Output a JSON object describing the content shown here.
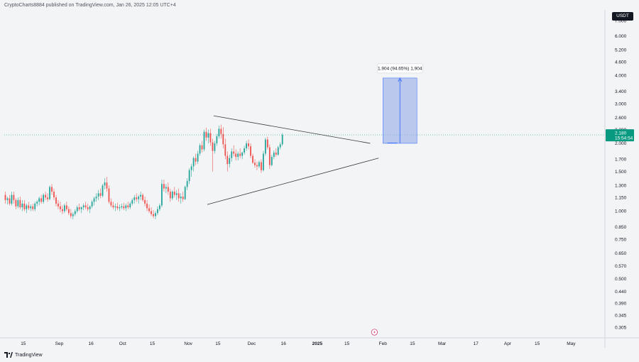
{
  "header": {
    "publisher_line": "CryptoCharts8884 published on TradingView.com, Jan 26, 2025 12:05 UTC+4"
  },
  "badge": {
    "currency": "USDT"
  },
  "footer": {
    "brand": "TradingView"
  },
  "colors": {
    "background": "#f3f4f6",
    "up_candle": "#26a69a",
    "down_candle": "#ef5350",
    "trendline": "#3a3a3a",
    "measure_fill": "#9bb0e8",
    "measure_line": "#2962ff",
    "price_tag": "#089981",
    "last_price_line": "#26a69a"
  },
  "chart_data": {
    "type": "candlestick",
    "scale": "log",
    "ylim": [
      0.29,
      7.6
    ],
    "x_range": [
      "2024-08-06",
      "2025-05-17"
    ],
    "price_ticks": [
      "7.000",
      "6.000",
      "5.200",
      "4.600",
      "4.000",
      "3.400",
      "3.000",
      "2.600",
      "2.300",
      "2.000",
      "1.700",
      "1.500",
      "1.300",
      "1.150",
      "1.000",
      "0.850",
      "0.750",
      "0.650",
      "0.570",
      "0.500",
      "0.440",
      "0.390",
      "0.345",
      "0.305"
    ],
    "time_ticks": [
      {
        "label": "15",
        "date": "2024-08-15"
      },
      {
        "label": "Sep",
        "date": "2024-09-01"
      },
      {
        "label": "16",
        "date": "2024-09-16"
      },
      {
        "label": "Oct",
        "date": "2024-10-01"
      },
      {
        "label": "15",
        "date": "2024-10-15"
      },
      {
        "label": "Nov",
        "date": "2024-11-01"
      },
      {
        "label": "15",
        "date": "2024-11-15"
      },
      {
        "label": "Dec",
        "date": "2024-12-01"
      },
      {
        "label": "16",
        "date": "2024-12-16"
      },
      {
        "label": "2025",
        "date": "2025-01-01"
      },
      {
        "label": "15",
        "date": "2025-01-15"
      },
      {
        "label": "Feb",
        "date": "2025-02-01"
      },
      {
        "label": "15",
        "date": "2025-02-15"
      },
      {
        "label": "Mar",
        "date": "2025-03-01"
      },
      {
        "label": "17",
        "date": "2025-03-17"
      },
      {
        "label": "Apr",
        "date": "2025-04-01"
      },
      {
        "label": "15",
        "date": "2025-04-15"
      },
      {
        "label": "May",
        "date": "2025-05-01"
      }
    ],
    "last_price": "2.180",
    "countdown": "15:54:54",
    "measure_label": "1.904 (94.65%) 1,904",
    "trendlines": [
      {
        "name": "upper",
        "from": {
          "date": "2024-11-13",
          "price": 2.65
        },
        "to": {
          "date": "2025-01-26",
          "price": 2.0
        }
      },
      {
        "name": "lower",
        "from": {
          "date": "2024-11-10",
          "price": 1.07
        },
        "to": {
          "date": "2025-01-30",
          "price": 1.72
        }
      }
    ],
    "measure_box": {
      "from_date": "2025-01-26",
      "to_date": "2025-02-03",
      "low": 2.0,
      "high": 3.9
    },
    "candles_ohlc_by_day_from_2024-08-06": [
      [
        1.18,
        1.22,
        1.08,
        1.12
      ],
      [
        1.12,
        1.16,
        1.07,
        1.14
      ],
      [
        1.14,
        1.18,
        1.06,
        1.08
      ],
      [
        1.08,
        1.22,
        1.06,
        1.18
      ],
      [
        1.18,
        1.22,
        1.08,
        1.12
      ],
      [
        1.12,
        1.14,
        1.02,
        1.05
      ],
      [
        1.05,
        1.15,
        1.03,
        1.12
      ],
      [
        1.12,
        1.16,
        1.02,
        1.04
      ],
      [
        1.04,
        1.12,
        1.0,
        1.08
      ],
      [
        1.08,
        1.12,
        1.0,
        1.02
      ],
      [
        1.02,
        1.08,
        0.98,
        1.06
      ],
      [
        1.06,
        1.1,
        1.01,
        1.03
      ],
      [
        1.03,
        1.07,
        1.0,
        1.05
      ],
      [
        1.05,
        1.08,
        1.0,
        1.02
      ],
      [
        1.02,
        1.1,
        1.0,
        1.08
      ],
      [
        1.08,
        1.12,
        1.05,
        1.1
      ],
      [
        1.1,
        1.16,
        1.06,
        1.14
      ],
      [
        1.14,
        1.18,
        1.08,
        1.1
      ],
      [
        1.1,
        1.2,
        1.08,
        1.18
      ],
      [
        1.18,
        1.22,
        1.12,
        1.15
      ],
      [
        1.15,
        1.2,
        1.1,
        1.13
      ],
      [
        1.13,
        1.3,
        1.12,
        1.28
      ],
      [
        1.28,
        1.32,
        1.18,
        1.22
      ],
      [
        1.22,
        1.26,
        1.12,
        1.15
      ],
      [
        1.15,
        1.18,
        1.05,
        1.08
      ],
      [
        1.08,
        1.12,
        1.02,
        1.05
      ],
      [
        1.05,
        1.1,
        0.99,
        1.02
      ],
      [
        1.02,
        1.06,
        0.97,
        1.0
      ],
      [
        1.0,
        1.08,
        0.98,
        1.06
      ],
      [
        1.06,
        1.1,
        1.0,
        1.02
      ],
      [
        1.02,
        1.05,
        0.96,
        0.98
      ],
      [
        0.98,
        1.02,
        0.93,
        0.95
      ],
      [
        0.95,
        0.99,
        0.92,
        0.97
      ],
      [
        0.97,
        1.02,
        0.95,
        1.0
      ],
      [
        1.0,
        1.06,
        0.98,
        1.04
      ],
      [
        1.04,
        1.08,
        1.0,
        1.02
      ],
      [
        1.02,
        1.05,
        0.98,
        1.04
      ],
      [
        1.04,
        1.08,
        1.01,
        1.06
      ],
      [
        1.06,
        1.1,
        1.02,
        1.04
      ],
      [
        1.04,
        1.08,
        1.0,
        1.02
      ],
      [
        1.02,
        1.06,
        0.98,
        1.05
      ],
      [
        1.05,
        1.12,
        1.03,
        1.1
      ],
      [
        1.1,
        1.16,
        1.06,
        1.14
      ],
      [
        1.14,
        1.2,
        1.1,
        1.16
      ],
      [
        1.16,
        1.24,
        1.12,
        1.2
      ],
      [
        1.2,
        1.26,
        1.14,
        1.17
      ],
      [
        1.17,
        1.32,
        1.15,
        1.3
      ],
      [
        1.3,
        1.4,
        1.25,
        1.34
      ],
      [
        1.34,
        1.42,
        1.22,
        1.26
      ],
      [
        1.26,
        1.3,
        1.08,
        1.1
      ],
      [
        1.1,
        1.14,
        1.04,
        1.06
      ],
      [
        1.06,
        1.1,
        1.02,
        1.04
      ],
      [
        1.04,
        1.08,
        1.0,
        1.05
      ],
      [
        1.05,
        1.09,
        1.01,
        1.03
      ],
      [
        1.03,
        1.07,
        1.0,
        1.04
      ],
      [
        1.04,
        1.08,
        1.02,
        1.05
      ],
      [
        1.05,
        1.09,
        1.01,
        1.03
      ],
      [
        1.03,
        1.08,
        1.0,
        1.06
      ],
      [
        1.06,
        1.1,
        1.02,
        1.04
      ],
      [
        1.04,
        1.1,
        1.02,
        1.08
      ],
      [
        1.08,
        1.14,
        1.06,
        1.12
      ],
      [
        1.12,
        1.18,
        1.08,
        1.15
      ],
      [
        1.15,
        1.2,
        1.1,
        1.13
      ],
      [
        1.13,
        1.18,
        1.08,
        1.16
      ],
      [
        1.16,
        1.22,
        1.12,
        1.18
      ],
      [
        1.18,
        1.2,
        1.1,
        1.12
      ],
      [
        1.12,
        1.16,
        1.05,
        1.08
      ],
      [
        1.08,
        1.12,
        1.0,
        1.03
      ],
      [
        1.03,
        1.07,
        0.98,
        1.0
      ],
      [
        1.0,
        1.04,
        0.95,
        0.97
      ],
      [
        0.97,
        1.01,
        0.93,
        0.95
      ],
      [
        0.95,
        1.0,
        0.92,
        0.98
      ],
      [
        0.98,
        1.05,
        0.96,
        1.02
      ],
      [
        1.02,
        1.08,
        1.0,
        1.06
      ],
      [
        1.06,
        1.38,
        1.04,
        1.32
      ],
      [
        1.32,
        1.38,
        1.22,
        1.26
      ],
      [
        1.26,
        1.32,
        1.2,
        1.28
      ],
      [
        1.28,
        1.34,
        1.18,
        1.22
      ],
      [
        1.22,
        1.26,
        1.1,
        1.14
      ],
      [
        1.14,
        1.24,
        1.12,
        1.22
      ],
      [
        1.22,
        1.28,
        1.15,
        1.18
      ],
      [
        1.18,
        1.24,
        1.12,
        1.2
      ],
      [
        1.2,
        1.26,
        1.1,
        1.14
      ],
      [
        1.14,
        1.2,
        1.08,
        1.16
      ],
      [
        1.16,
        1.22,
        1.1,
        1.13
      ],
      [
        1.13,
        1.3,
        1.12,
        1.28
      ],
      [
        1.28,
        1.4,
        1.24,
        1.36
      ],
      [
        1.36,
        1.55,
        1.32,
        1.52
      ],
      [
        1.52,
        1.62,
        1.42,
        1.58
      ],
      [
        1.58,
        1.75,
        1.5,
        1.72
      ],
      [
        1.72,
        1.8,
        1.6,
        1.66
      ],
      [
        1.66,
        1.85,
        1.62,
        1.8
      ],
      [
        1.8,
        2.0,
        1.76,
        1.96
      ],
      [
        1.96,
        2.05,
        1.82,
        1.88
      ],
      [
        1.88,
        2.3,
        1.84,
        2.25
      ],
      [
        2.25,
        2.35,
        2.05,
        2.12
      ],
      [
        2.12,
        2.3,
        2.0,
        2.22
      ],
      [
        2.22,
        2.32,
        1.95,
        2.02
      ],
      [
        2.02,
        2.1,
        1.5,
        1.85
      ],
      [
        1.85,
        2.05,
        1.8,
        2.0
      ],
      [
        2.0,
        2.2,
        1.95,
        2.15
      ],
      [
        2.15,
        2.4,
        2.1,
        2.32
      ],
      [
        2.32,
        2.42,
        2.1,
        2.2
      ],
      [
        2.2,
        2.36,
        1.9,
        1.98
      ],
      [
        1.98,
        2.1,
        1.7,
        1.76
      ],
      [
        1.76,
        1.84,
        1.5,
        1.62
      ],
      [
        1.62,
        1.78,
        1.56,
        1.72
      ],
      [
        1.72,
        1.9,
        1.66,
        1.84
      ],
      [
        1.84,
        1.96,
        1.75,
        1.8
      ],
      [
        1.8,
        1.88,
        1.68,
        1.74
      ],
      [
        1.74,
        1.84,
        1.68,
        1.8
      ],
      [
        1.8,
        1.9,
        1.72,
        1.76
      ],
      [
        1.76,
        1.84,
        1.7,
        1.82
      ],
      [
        1.82,
        1.95,
        1.78,
        1.9
      ],
      [
        1.9,
        2.05,
        1.85,
        2.0
      ],
      [
        2.0,
        2.08,
        1.88,
        1.94
      ],
      [
        1.94,
        2.0,
        1.72,
        1.76
      ],
      [
        1.76,
        1.8,
        1.62,
        1.64
      ],
      [
        1.64,
        1.7,
        1.56,
        1.6
      ],
      [
        1.6,
        1.66,
        1.52,
        1.58
      ],
      [
        1.58,
        1.68,
        1.55,
        1.65
      ],
      [
        1.65,
        1.7,
        1.48,
        1.52
      ],
      [
        1.52,
        1.85,
        1.5,
        1.8
      ],
      [
        1.8,
        2.12,
        1.76,
        2.08
      ],
      [
        2.08,
        2.14,
        1.88,
        1.92
      ],
      [
        1.92,
        1.98,
        1.54,
        1.6
      ],
      [
        1.6,
        1.78,
        1.58,
        1.74
      ],
      [
        1.74,
        1.86,
        1.7,
        1.82
      ],
      [
        1.82,
        1.9,
        1.74,
        1.78
      ],
      [
        1.78,
        1.95,
        1.76,
        1.92
      ],
      [
        1.92,
        2.02,
        1.88,
        1.98
      ],
      [
        1.98,
        2.22,
        1.95,
        2.18
      ]
    ]
  }
}
